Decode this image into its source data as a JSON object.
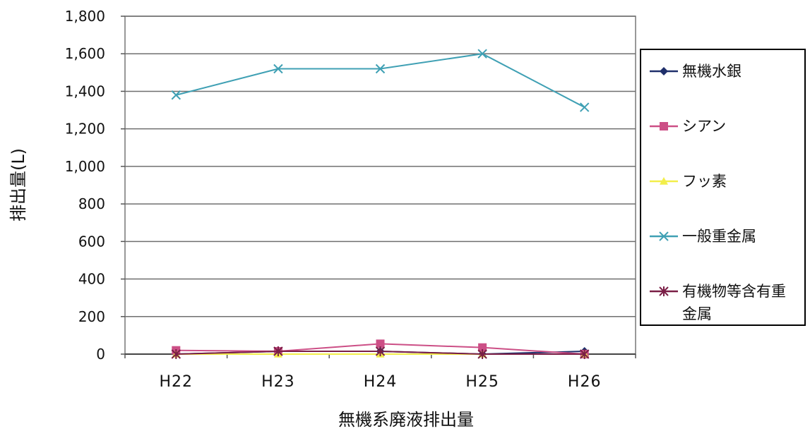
{
  "chart_data": {
    "type": "line",
    "categories": [
      "H22",
      "H23",
      "H24",
      "H25",
      "H26"
    ],
    "ylim": [
      0,
      1800
    ],
    "yticks": [
      0,
      200,
      400,
      600,
      800,
      1000,
      1200,
      1400,
      1600,
      1800
    ],
    "ytick_labels": [
      "0",
      "200",
      "400",
      "600",
      "800",
      "1,000",
      "1,200",
      "1,400",
      "1,600",
      "1,800"
    ],
    "ylabel": "排出量(L)",
    "xlabel": "無機系廃液排出量",
    "grid": true,
    "legend_position": "right",
    "series": [
      {
        "name": "無機水銀",
        "marker": "diamond",
        "color": "#1f2f6b",
        "values": [
          0,
          15,
          15,
          0,
          15
        ]
      },
      {
        "name": "シアン",
        "marker": "square",
        "color": "#cc4f86",
        "values": [
          20,
          15,
          55,
          35,
          0
        ]
      },
      {
        "name": "フッ素",
        "marker": "triangle",
        "color": "#f2ee4a",
        "values": [
          0,
          0,
          0,
          0,
          0
        ]
      },
      {
        "name": "一般重金属",
        "marker": "x",
        "color": "#3fa0b4",
        "values": [
          1380,
          1520,
          1520,
          1600,
          1315
        ]
      },
      {
        "name": "有機物等含有重金属",
        "marker": "star",
        "color": "#7a1f46",
        "values": [
          0,
          15,
          15,
          0,
          0
        ]
      }
    ]
  }
}
